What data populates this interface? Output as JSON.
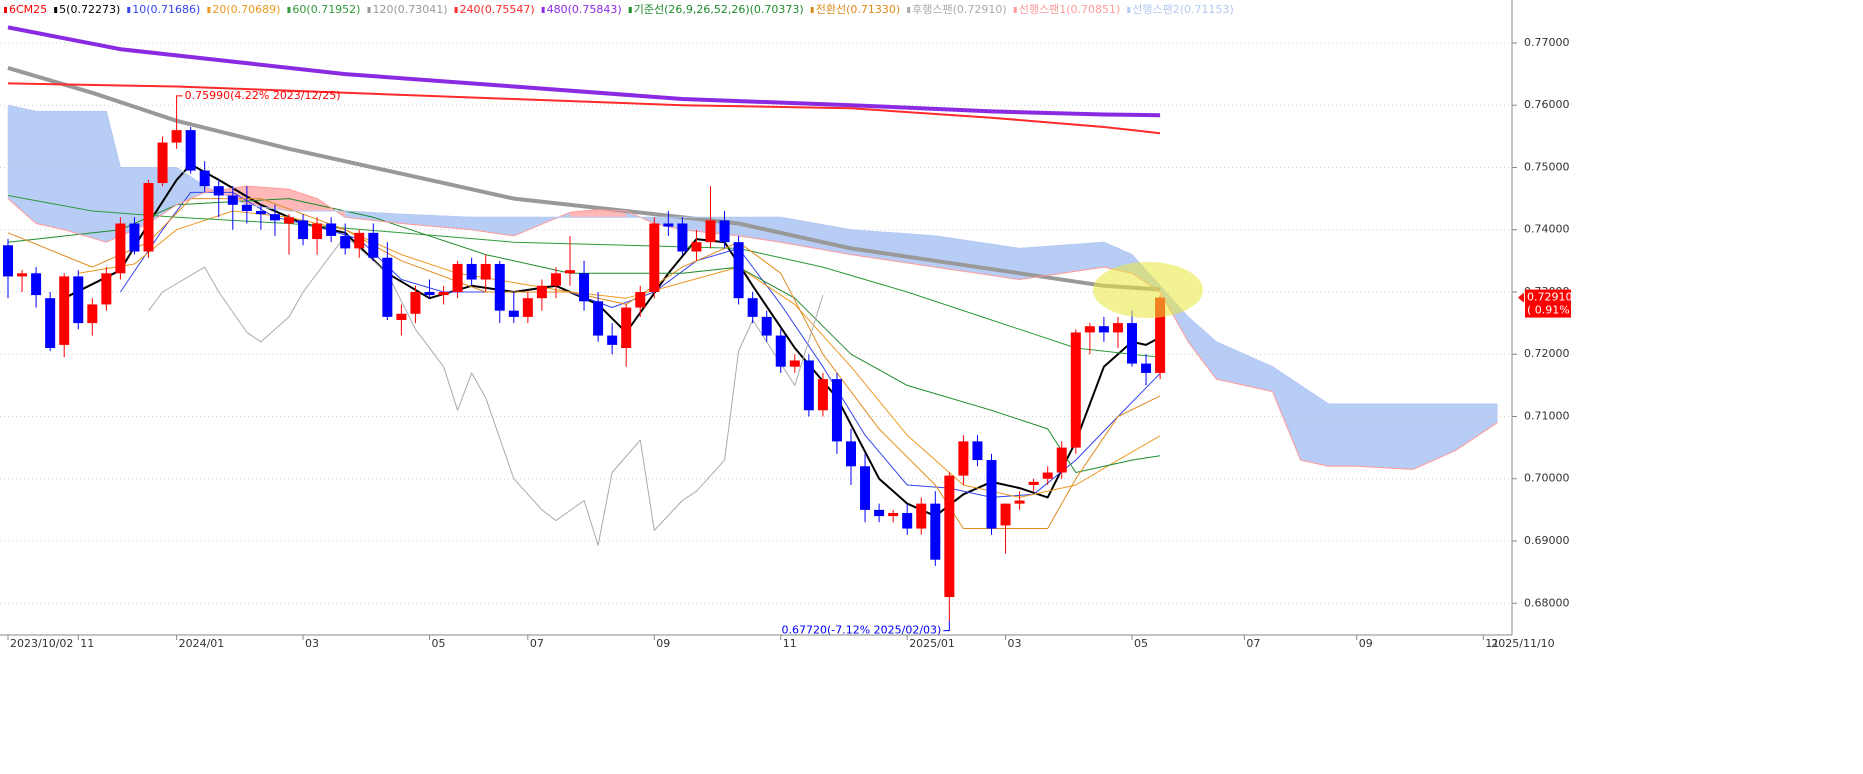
{
  "chart_data": {
    "type": "candlestick",
    "ylim": [
      0.6749,
      0.7769
    ],
    "yticks": [
      {
        "value": 0.68,
        "label": "0.68000"
      },
      {
        "value": 0.69,
        "label": "0.69000"
      },
      {
        "value": 0.7,
        "label": "0.70000"
      },
      {
        "value": 0.71,
        "label": "0.71000"
      },
      {
        "value": 0.72,
        "label": "0.72000"
      },
      {
        "value": 0.73,
        "label": "0.73000"
      },
      {
        "value": 0.74,
        "label": "0.74000"
      },
      {
        "value": 0.75,
        "label": "0.75000"
      },
      {
        "value": 0.76,
        "label": "0.76000"
      },
      {
        "value": 0.77,
        "label": "0.77000"
      }
    ],
    "grid": true,
    "categories": [
      "2023/10/02",
      null,
      null,
      null,
      null,
      "11",
      null,
      null,
      null,
      null,
      null,
      null,
      "2024/01",
      null,
      null,
      null,
      null,
      null,
      null,
      null,
      null,
      "03",
      null,
      null,
      null,
      null,
      null,
      null,
      null,
      null,
      "05",
      null,
      null,
      null,
      null,
      null,
      null,
      "07",
      null,
      null,
      null,
      null,
      null,
      null,
      null,
      null,
      "09",
      null,
      null,
      null,
      null,
      null,
      null,
      null,
      null,
      "11",
      null,
      null,
      null,
      null,
      null,
      null,
      null,
      null,
      "2025/01",
      null,
      null,
      null,
      null,
      null,
      null,
      "03",
      null,
      null,
      null,
      null,
      null,
      null,
      null,
      null,
      "05",
      null,
      null,
      null,
      null,
      null,
      null,
      null,
      "07",
      null,
      null,
      null,
      null,
      null,
      null,
      null,
      "09",
      null,
      null,
      null,
      null,
      null,
      null,
      null,
      null,
      "11"
    ],
    "x_end_label": "2025/11/10",
    "series": [
      {
        "name": "6CM25",
        "type": "candlestick",
        "up_color": "#ff0000",
        "down_color": "#0000ff",
        "open": [
          0.7375,
          0.7325,
          0.733,
          0.729,
          0.7215,
          0.7325,
          0.725,
          0.728,
          0.733,
          0.741,
          0.7365,
          0.7475,
          0.754,
          0.756,
          0.7495,
          0.747,
          0.7455,
          0.744,
          0.743,
          0.7425,
          0.741,
          0.7415,
          0.7385,
          0.741,
          0.739,
          0.737,
          0.7395,
          0.7355,
          0.7255,
          0.7265,
          0.73,
          0.7295,
          0.73,
          0.7345,
          0.732,
          0.7345,
          0.727,
          0.726,
          0.729,
          0.731,
          0.733,
          0.733,
          0.7285,
          0.723,
          0.721,
          0.7275,
          0.73,
          0.741,
          0.741,
          0.7365,
          0.738,
          0.7415,
          0.738,
          0.729,
          0.726,
          0.723,
          0.718,
          0.719,
          0.711,
          0.716,
          0.706,
          0.702,
          0.695,
          0.694,
          0.6945,
          0.692,
          0.696,
          0.681,
          0.7005,
          0.706,
          0.703,
          0.6925,
          0.696,
          0.699,
          0.7,
          0.701,
          0.705,
          0.7235,
          0.7245,
          0.7235,
          0.725,
          0.7185,
          0.717
        ],
        "high": [
          0.7385,
          0.7335,
          0.734,
          0.73,
          0.733,
          0.7335,
          0.729,
          0.734,
          0.742,
          0.742,
          0.748,
          0.755,
          0.7599,
          0.7565,
          0.751,
          0.748,
          0.747,
          0.747,
          0.744,
          0.744,
          0.7425,
          0.7425,
          0.742,
          0.742,
          0.741,
          0.74,
          0.741,
          0.738,
          0.728,
          0.731,
          0.732,
          0.731,
          0.735,
          0.7355,
          0.736,
          0.735,
          0.73,
          0.73,
          0.732,
          0.734,
          0.739,
          0.735,
          0.73,
          0.725,
          0.728,
          0.731,
          0.742,
          0.743,
          0.742,
          0.74,
          0.747,
          0.743,
          0.739,
          0.73,
          0.727,
          0.724,
          0.72,
          0.72,
          0.717,
          0.717,
          0.708,
          0.704,
          0.696,
          0.695,
          0.696,
          0.697,
          0.698,
          0.701,
          0.707,
          0.707,
          0.704,
          0.696,
          0.698,
          0.7,
          0.702,
          0.706,
          0.724,
          0.725,
          0.726,
          0.726,
          0.727,
          0.72,
          0.7295
        ],
        "low": [
          0.729,
          0.73,
          0.7275,
          0.7205,
          0.7195,
          0.724,
          0.723,
          0.727,
          0.732,
          0.736,
          0.7355,
          0.747,
          0.753,
          0.749,
          0.746,
          0.742,
          0.74,
          0.741,
          0.74,
          0.739,
          0.736,
          0.7375,
          0.736,
          0.738,
          0.736,
          0.7355,
          0.735,
          0.7255,
          0.723,
          0.725,
          0.729,
          0.728,
          0.729,
          0.731,
          0.73,
          0.725,
          0.725,
          0.725,
          0.727,
          0.729,
          0.731,
          0.727,
          0.722,
          0.72,
          0.718,
          0.726,
          0.729,
          0.739,
          0.736,
          0.735,
          0.737,
          0.737,
          0.728,
          0.725,
          0.722,
          0.717,
          0.717,
          0.71,
          0.71,
          0.704,
          0.699,
          0.693,
          0.693,
          0.693,
          0.691,
          0.691,
          0.686,
          0.6772,
          0.699,
          0.702,
          0.691,
          0.688,
          0.695,
          0.698,
          0.699,
          0.7,
          0.704,
          0.72,
          0.722,
          0.721,
          0.718,
          0.715,
          0.716
        ],
        "close": [
          0.7325,
          0.733,
          0.7295,
          0.721,
          0.7325,
          0.725,
          0.728,
          0.733,
          0.741,
          0.7365,
          0.7475,
          0.754,
          0.756,
          0.7495,
          0.747,
          0.7455,
          0.744,
          0.743,
          0.7425,
          0.7415,
          0.742,
          0.7385,
          0.741,
          0.739,
          0.737,
          0.7395,
          0.7355,
          0.726,
          0.7265,
          0.73,
          0.7295,
          0.73,
          0.7345,
          0.732,
          0.7345,
          0.727,
          0.726,
          0.729,
          0.731,
          0.733,
          0.7335,
          0.7285,
          0.723,
          0.7215,
          0.7275,
          0.73,
          0.741,
          0.7405,
          0.7365,
          0.738,
          0.7415,
          0.738,
          0.729,
          0.726,
          0.723,
          0.718,
          0.719,
          0.711,
          0.716,
          0.706,
          0.702,
          0.695,
          0.694,
          0.6945,
          0.692,
          0.696,
          0.687,
          0.7005,
          0.706,
          0.703,
          0.692,
          0.696,
          0.6965,
          0.6995,
          0.701,
          0.705,
          0.7235,
          0.7245,
          0.7235,
          0.725,
          0.7185,
          0.717,
          0.7291
        ]
      },
      {
        "name": "5(0.72273)",
        "type": "line",
        "color": "#000000",
        "width": 2,
        "x": [
          4,
          8,
          10,
          12,
          13,
          15,
          18,
          21,
          24,
          27,
          30,
          33,
          36,
          39,
          42,
          44,
          47,
          49,
          51,
          53,
          56,
          59,
          62,
          64,
          66,
          68,
          70,
          72,
          74,
          76,
          78,
          80,
          81,
          82
        ],
        "values": [
          0.729,
          0.7335,
          0.741,
          0.748,
          0.7505,
          0.748,
          0.744,
          0.741,
          0.7395,
          0.733,
          0.729,
          0.731,
          0.73,
          0.731,
          0.728,
          0.7235,
          0.733,
          0.7385,
          0.738,
          0.731,
          0.721,
          0.713,
          0.7,
          0.696,
          0.694,
          0.6975,
          0.6995,
          0.6985,
          0.697,
          0.706,
          0.718,
          0.722,
          0.7215,
          0.7227
        ]
      },
      {
        "name": "10(0.71686)",
        "type": "line",
        "color": "#3344ee",
        "width": 1,
        "x": [
          8,
          11,
          13,
          16,
          19,
          22,
          25,
          28,
          31,
          34,
          37,
          40,
          43,
          46,
          49,
          52,
          55,
          58,
          61,
          64,
          67,
          70,
          73,
          76,
          79,
          82
        ],
        "values": [
          0.73,
          0.74,
          0.746,
          0.746,
          0.742,
          0.7405,
          0.7385,
          0.732,
          0.73,
          0.73,
          0.73,
          0.73,
          0.7275,
          0.73,
          0.735,
          0.737,
          0.728,
          0.718,
          0.707,
          0.699,
          0.6985,
          0.697,
          0.6975,
          0.703,
          0.71,
          0.7169
        ]
      },
      {
        "name": "20(0.70689)",
        "type": "line",
        "color": "#ee9922",
        "width": 1,
        "x": [
          5,
          9,
          12,
          16,
          20,
          24,
          28,
          32,
          36,
          40,
          44,
          48,
          52,
          56,
          60,
          64,
          68,
          72,
          76,
          79,
          82
        ],
        "values": [
          0.733,
          0.7345,
          0.74,
          0.743,
          0.742,
          0.74,
          0.736,
          0.733,
          0.7315,
          0.73,
          0.729,
          0.7315,
          0.734,
          0.728,
          0.718,
          0.707,
          0.699,
          0.697,
          0.699,
          0.703,
          0.7069
        ]
      },
      {
        "name": "60(0.71952)",
        "type": "line",
        "color": "#2e9a3a",
        "width": 1,
        "x": [
          0,
          6,
          12,
          20,
          28,
          36,
          44,
          52,
          58,
          64,
          70,
          76,
          80,
          82
        ],
        "values": [
          0.7455,
          0.743,
          0.742,
          0.741,
          0.7395,
          0.738,
          0.7375,
          0.737,
          0.734,
          0.73,
          0.7255,
          0.721,
          0.72,
          0.7195
        ]
      },
      {
        "name": "120(0.73041)",
        "type": "line",
        "color": "#999999",
        "width": 4,
        "x": [
          0,
          6,
          12,
          20,
          28,
          36,
          44,
          52,
          60,
          66,
          72,
          78,
          82
        ],
        "values": [
          0.766,
          0.762,
          0.7575,
          0.753,
          0.749,
          0.745,
          0.743,
          0.741,
          0.737,
          0.735,
          0.733,
          0.731,
          0.7304
        ]
      },
      {
        "name": "240(0.75547)",
        "type": "line",
        "color": "#ff2a2a",
        "width": 2,
        "x": [
          0,
          12,
          24,
          36,
          48,
          60,
          70,
          78,
          82
        ],
        "values": [
          0.7635,
          0.763,
          0.762,
          0.761,
          0.76,
          0.7595,
          0.758,
          0.7565,
          0.7555
        ]
      },
      {
        "name": "480(0.75843)",
        "type": "line",
        "color": "#8a2be2",
        "width": 4,
        "x": [
          0,
          8,
          16,
          24,
          36,
          48,
          60,
          70,
          78,
          82
        ],
        "values": [
          0.7725,
          0.769,
          0.767,
          0.765,
          0.763,
          0.761,
          0.76,
          0.759,
          0.7585,
          0.7584
        ]
      },
      {
        "name": "기준선(26,9,26,52,26)(0.70373)",
        "type": "line",
        "color": "#1e8a2a",
        "width": 1,
        "x": [
          0,
          8,
          12,
          20,
          26,
          34,
          40,
          48,
          52,
          56,
          60,
          64,
          70,
          74,
          76,
          80,
          82
        ],
        "values": [
          0.738,
          0.74,
          0.744,
          0.745,
          0.742,
          0.736,
          0.733,
          0.733,
          0.734,
          0.729,
          0.72,
          0.715,
          0.711,
          0.708,
          0.701,
          0.703,
          0.7037
        ]
      },
      {
        "name": "전환선(0.71330)",
        "type": "line",
        "color": "#e08a1e",
        "width": 1,
        "x": [
          0,
          6,
          10,
          13,
          18,
          24,
          28,
          34,
          40,
          44,
          48,
          52,
          55,
          58,
          62,
          66,
          68,
          74,
          76,
          79,
          82
        ],
        "values": [
          0.7395,
          0.734,
          0.738,
          0.745,
          0.745,
          0.74,
          0.735,
          0.73,
          0.73,
          0.728,
          0.734,
          0.738,
          0.733,
          0.72,
          0.708,
          0.699,
          0.692,
          0.692,
          0.7,
          0.71,
          0.7133
        ]
      },
      {
        "name": "후행스팬(0.72910)",
        "type": "line",
        "color": "#aaaaaa",
        "width": 1,
        "x": [
          10,
          11,
          14,
          15,
          17,
          18,
          20,
          21,
          23,
          24,
          27,
          29,
          31,
          32,
          33,
          34,
          36,
          38,
          39,
          41,
          42,
          43,
          45,
          46,
          48,
          49,
          51,
          52,
          53,
          56,
          58
        ],
        "values": [
          0.727,
          0.73,
          0.734,
          0.73,
          0.7235,
          0.722,
          0.726,
          0.73,
          0.736,
          0.739,
          0.733,
          0.724,
          0.718,
          0.711,
          0.717,
          0.713,
          0.7,
          0.695,
          0.6933,
          0.6965,
          0.6893,
          0.701,
          0.7062,
          0.6917,
          0.6965,
          0.698,
          0.703,
          0.7205,
          0.7255,
          0.715,
          0.7295
        ]
      },
      {
        "name": "선행스팬1(0.70851)",
        "type": "span1",
        "color": "#ff9a9a",
        "width": 1,
        "x": [
          0,
          2,
          4,
          7,
          8,
          10,
          12,
          14,
          17,
          20,
          22,
          24,
          28,
          33,
          36,
          40,
          42,
          44,
          46,
          48,
          52,
          55,
          60,
          66,
          72,
          78,
          80,
          82,
          84,
          86,
          88,
          90,
          92,
          94,
          96,
          100,
          103,
          106
        ],
        "values": [
          0.745,
          0.741,
          0.74,
          0.738,
          0.739,
          0.741,
          0.744,
          0.746,
          0.747,
          0.7465,
          0.745,
          0.742,
          0.741,
          0.74,
          0.739,
          0.7428,
          0.7432,
          0.743,
          0.741,
          0.74,
          0.739,
          0.738,
          0.736,
          0.734,
          0.732,
          0.734,
          0.733,
          0.73,
          0.722,
          0.716,
          0.715,
          0.714,
          0.703,
          0.702,
          0.702,
          0.7015,
          0.7045,
          0.709
        ]
      },
      {
        "name": "선행스팬2(0.71153)",
        "type": "span2",
        "color": "#b3c9f2",
        "width": 1,
        "x": [
          0,
          2,
          4,
          7,
          8,
          10,
          12,
          14,
          17,
          20,
          22,
          24,
          28,
          33,
          36,
          40,
          42,
          44,
          46,
          48,
          52,
          55,
          60,
          66,
          72,
          78,
          80,
          82,
          84,
          86,
          88,
          90,
          92,
          94,
          96,
          100,
          103,
          106
        ],
        "values": [
          0.76,
          0.759,
          0.759,
          0.759,
          0.75,
          0.75,
          0.75,
          0.747,
          0.744,
          0.743,
          0.743,
          0.743,
          0.7425,
          0.742,
          0.742,
          0.742,
          0.742,
          0.742,
          0.742,
          0.742,
          0.742,
          0.742,
          0.74,
          0.739,
          0.737,
          0.738,
          0.736,
          0.731,
          0.726,
          0.722,
          0.72,
          0.718,
          0.715,
          0.712,
          0.712,
          0.712,
          0.712,
          0.712
        ]
      }
    ],
    "annotations": [
      {
        "text": "0.75990(4.22% 2023/12/25)",
        "x": 12,
        "y": 0.7599,
        "color": "#ff0000"
      },
      {
        "text": "0.67720(-7.12% 2025/02/03)",
        "x": 67,
        "y": 0.6772,
        "color": "#0000ff"
      }
    ],
    "price_marker": {
      "value": 0.7291,
      "label": "0.72910",
      "change_label": "( 0.91%)",
      "color": "#ff0000"
    }
  }
}
